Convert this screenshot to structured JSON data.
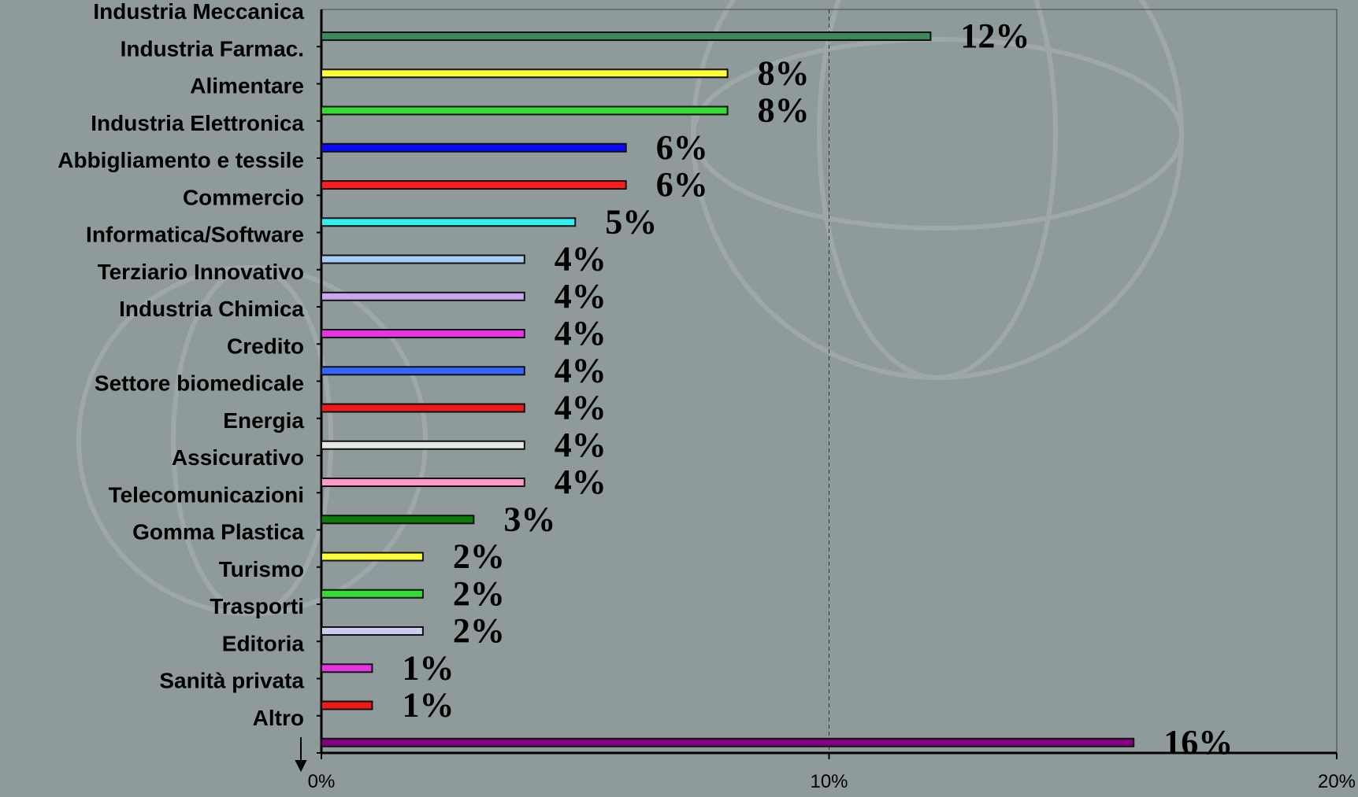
{
  "chart_data": {
    "type": "bar",
    "orientation": "horizontal",
    "categories": [
      "Industria Meccanica",
      "Industria Farmac.",
      "Alimentare",
      "Industria Elettronica",
      "Abbigliamento e tessile",
      "Commercio",
      "Informatica/Software",
      "Terziario Innovativo",
      "Industria Chimica",
      "Credito",
      "Settore biomedicale",
      "Energia",
      "Assicurativo",
      "Telecomunicazioni",
      "Gomma Plastica",
      "Turismo",
      "Trasporti",
      "Editoria",
      "Sanità privata",
      "Altro"
    ],
    "values": [
      12,
      8,
      8,
      6,
      6,
      5,
      4,
      4,
      4,
      4,
      4,
      4,
      4,
      3,
      2,
      2,
      2,
      1,
      1,
      16
    ],
    "value_labels": [
      "12%",
      "8%",
      "8%",
      "6%",
      "6%",
      "5%",
      "4%",
      "4%",
      "4%",
      "4%",
      "4%",
      "4%",
      "4%",
      "3%",
      "2%",
      "2%",
      "2%",
      "1%",
      "1%",
      "16%"
    ],
    "colors": [
      "#3c8a5c",
      "#ffff33",
      "#33dd33",
      "#0a0aff",
      "#ff1a1a",
      "#33eeee",
      "#a6ccf2",
      "#c8a6f0",
      "#e633e6",
      "#3366ff",
      "#ee1a1a",
      "#e6e6e6",
      "#ff99cc",
      "#0e7a0e",
      "#ffff33",
      "#33dd33",
      "#ccccf2",
      "#e633e6",
      "#ee1a1a",
      "#800080"
    ],
    "xlim": [
      0,
      20
    ],
    "xticks": [
      {
        "value": 0,
        "label": "0%"
      },
      {
        "value": 10,
        "label": "10%"
      },
      {
        "value": 20,
        "label": "20%"
      }
    ],
    "grid": true
  }
}
